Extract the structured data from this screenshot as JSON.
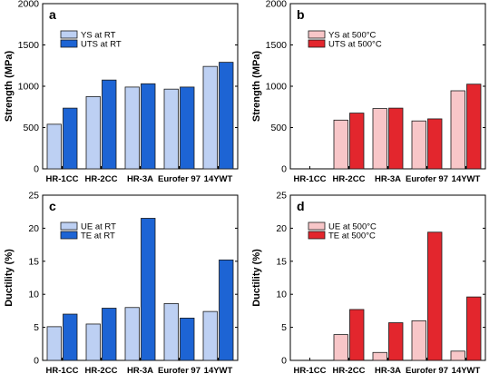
{
  "chart_data": [
    {
      "type": "bar",
      "panel_label": "a",
      "ylabel": "Strength (MPa)",
      "ylim": [
        0,
        2000
      ],
      "yticks": [
        "0",
        "500",
        "1000",
        "1500",
        "2000"
      ],
      "categories": [
        "HR-1CC",
        "HR-2CC",
        "HR-3A",
        "Eurofer 97",
        "14YWT"
      ],
      "legend_position": "top-left",
      "series": [
        {
          "name": "YS at RT",
          "color": "#bdd0f3",
          "values": [
            540,
            875,
            990,
            965,
            1240
          ]
        },
        {
          "name": "UTS at RT",
          "color": "#1d64d4",
          "values": [
            735,
            1075,
            1030,
            990,
            1290
          ]
        }
      ]
    },
    {
      "type": "bar",
      "panel_label": "b",
      "ylabel": "Strength (MPa)",
      "ylim": [
        0,
        2000
      ],
      "yticks": [
        "0",
        "500",
        "1000",
        "1500",
        "2000"
      ],
      "categories": [
        "HR-1CC",
        "HR-2CC",
        "HR-3A",
        "Eurofer 97",
        "14YWT"
      ],
      "legend_position": "top-left",
      "series": [
        {
          "name": "YS at 500°C",
          "color": "#f8c6c8",
          "values": [
            null,
            590,
            730,
            580,
            945
          ]
        },
        {
          "name": "UTS at 500°C",
          "color": "#e3262d",
          "values": [
            null,
            675,
            735,
            605,
            1025
          ]
        }
      ]
    },
    {
      "type": "bar",
      "panel_label": "c",
      "ylabel": "Ductility (%)",
      "ylim": [
        0,
        25
      ],
      "yticks": [
        "0",
        "5",
        "10",
        "15",
        "20",
        "25"
      ],
      "categories": [
        "HR-1CC",
        "HR-2CC",
        "HR-3A",
        "Eurofer 97",
        "14YWT"
      ],
      "legend_position": "top-left",
      "series": [
        {
          "name": "UE at RT",
          "color": "#bdd0f3",
          "values": [
            5.1,
            5.5,
            8.0,
            8.6,
            7.4
          ]
        },
        {
          "name": "TE at RT",
          "color": "#1d64d4",
          "values": [
            7.0,
            7.9,
            21.5,
            6.4,
            15.2
          ]
        }
      ]
    },
    {
      "type": "bar",
      "panel_label": "d",
      "ylabel": "Ductility (%)",
      "ylim": [
        0,
        25
      ],
      "yticks": [
        "0",
        "5",
        "10",
        "15",
        "20",
        "25"
      ],
      "categories": [
        "HR-1CC",
        "HR-2CC",
        "HR-3A",
        "Eurofer 97",
        "14YWT"
      ],
      "legend_position": "top-left",
      "series": [
        {
          "name": "UE at 500°C",
          "color": "#f8c6c8",
          "values": [
            null,
            3.9,
            1.2,
            6.0,
            1.4
          ]
        },
        {
          "name": "TE at 500°C",
          "color": "#e3262d",
          "values": [
            null,
            7.7,
            5.7,
            19.4,
            9.6
          ]
        }
      ]
    }
  ]
}
